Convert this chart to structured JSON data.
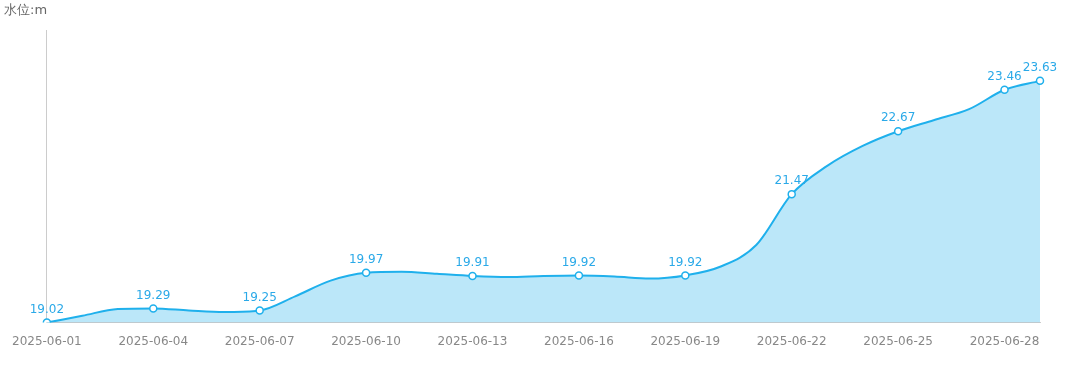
{
  "chart_data": {
    "type": "area",
    "ylabel": "水位:m",
    "categories": [
      "2025-06-01",
      null,
      null,
      "2025-06-04",
      null,
      null,
      "2025-06-07",
      null,
      null,
      "2025-06-10",
      null,
      null,
      "2025-06-13",
      null,
      null,
      "2025-06-16",
      null,
      null,
      "2025-06-19",
      null,
      null,
      "2025-06-22",
      null,
      null,
      "2025-06-25",
      null,
      null,
      "2025-06-28",
      null
    ],
    "series": [
      {
        "color": "#1fb0ec",
        "values": [
          19.02,
          19.15,
          19.28,
          19.29,
          19.25,
          19.22,
          19.25,
          19.52,
          19.82,
          19.97,
          19.99,
          19.95,
          19.91,
          19.89,
          19.91,
          19.92,
          19.9,
          19.86,
          19.92,
          20.09,
          20.5,
          21.47,
          22.01,
          22.39,
          22.67,
          22.88,
          23.09,
          23.46,
          23.63
        ],
        "value_labels": [
          "19.02",
          null,
          null,
          "19.29",
          null,
          null,
          "19.25",
          null,
          null,
          "19.97",
          null,
          null,
          "19.91",
          null,
          null,
          "19.92",
          null,
          null,
          "19.92",
          null,
          null,
          "21.47",
          null,
          null,
          "22.67",
          null,
          null,
          "23.46",
          "23.63"
        ]
      }
    ],
    "ylim": [
      19.02,
      24.6
    ],
    "tick_labels": "x",
    "grid": false,
    "legend": false
  }
}
